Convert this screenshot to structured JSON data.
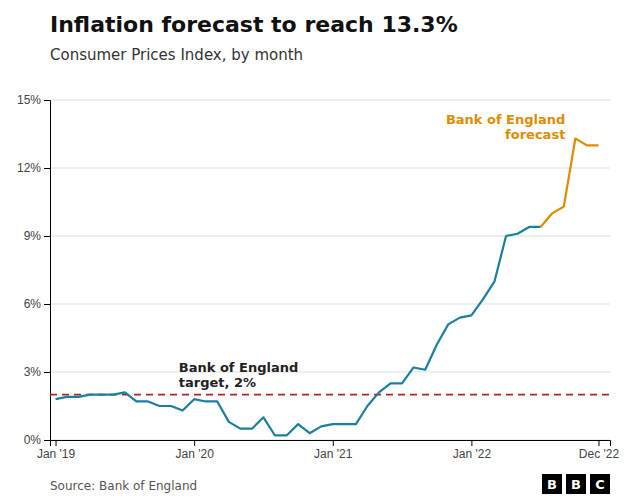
{
  "chart_data": {
    "type": "line",
    "title": "Inflation forecast to reach 13.3%",
    "subtitle": "Consumer Prices Index, by month",
    "source": "Source: Bank of England",
    "logo": "BBC",
    "grid": true,
    "xlim": [
      2018.96,
      2023.0
    ],
    "xticks": [
      {
        "value": 2019.0,
        "label": "Jan '19"
      },
      {
        "value": 2020.0,
        "label": "Jan '20"
      },
      {
        "value": 2021.0,
        "label": "Jan '21"
      },
      {
        "value": 2022.0,
        "label": "Jan '22"
      },
      {
        "value": 2022.917,
        "label": "Dec '22"
      }
    ],
    "ylim": [
      0,
      15
    ],
    "yticks": [
      {
        "value": 0,
        "label": "0%"
      },
      {
        "value": 3,
        "label": "3%"
      },
      {
        "value": 6,
        "label": "6%"
      },
      {
        "value": 9,
        "label": "9%"
      },
      {
        "value": 12,
        "label": "12%"
      },
      {
        "value": 15,
        "label": "15%"
      }
    ],
    "series": [
      {
        "color": "#1a7fa0",
        "x": [
          2019.0,
          2019.083,
          2019.167,
          2019.25,
          2019.333,
          2019.417,
          2019.5,
          2019.583,
          2019.667,
          2019.75,
          2019.833,
          2019.917,
          2020.0,
          2020.083,
          2020.167,
          2020.25,
          2020.333,
          2020.417,
          2020.5,
          2020.583,
          2020.667,
          2020.75,
          2020.833,
          2020.917,
          2021.0,
          2021.083,
          2021.167,
          2021.25,
          2021.333,
          2021.417,
          2021.5,
          2021.583,
          2021.667,
          2021.75,
          2021.833,
          2021.917,
          2022.0,
          2022.083,
          2022.167,
          2022.25,
          2022.333,
          2022.417,
          2022.5
        ],
        "values": [
          1.8,
          1.9,
          1.9,
          2.0,
          2.0,
          2.0,
          2.1,
          1.7,
          1.7,
          1.5,
          1.5,
          1.3,
          1.8,
          1.7,
          1.7,
          0.8,
          0.5,
          0.5,
          1.0,
          0.2,
          0.2,
          0.7,
          0.3,
          0.6,
          0.7,
          0.7,
          0.7,
          1.5,
          2.1,
          2.5,
          2.5,
          3.2,
          3.1,
          4.2,
          5.1,
          5.4,
          5.5,
          6.2,
          7.0,
          9.0,
          9.1,
          9.4,
          9.4
        ]
      },
      {
        "color": "#e08c00",
        "annotation": "Bank of England\nforecast",
        "x": [
          2022.5,
          2022.583,
          2022.667,
          2022.75,
          2022.833,
          2022.917
        ],
        "values": [
          9.4,
          10.0,
          10.3,
          13.3,
          13.0,
          13.0
        ]
      }
    ],
    "target": {
      "value": 2.0,
      "label": "Bank of England\ntarget, 2%",
      "color": "#b22222",
      "line_style": "dashed"
    }
  }
}
